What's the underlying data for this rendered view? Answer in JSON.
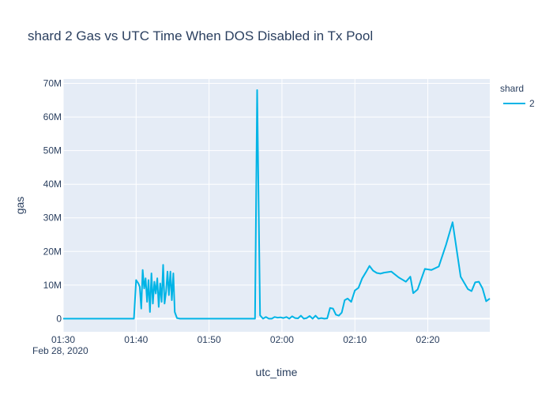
{
  "chart_data": {
    "type": "line",
    "title": "shard 2 Gas vs UTC Time When DOS Disabled in Tx Pool",
    "xlabel": "utc_time",
    "ylabel": "gas",
    "x_date_label": "Feb 28, 2020",
    "x_ticks": [
      "01:30",
      "01:40",
      "01:50",
      "02:00",
      "02:10",
      "02:20"
    ],
    "y_ticks": [
      "0",
      "10M",
      "20M",
      "30M",
      "40M",
      "50M",
      "60M",
      "70M"
    ],
    "y_tick_values": [
      0,
      10000000,
      20000000,
      30000000,
      40000000,
      50000000,
      60000000,
      70000000
    ],
    "x_range": [
      "01:30",
      "02:28.5"
    ],
    "ylim": [
      -3900000,
      71300000
    ],
    "grid": true,
    "legend": {
      "title": "shard",
      "position": "top-right"
    },
    "colors": {
      "series": "#00b4e6",
      "plot_bg": "#e5ecf6",
      "grid": "#ffffff"
    },
    "series": [
      {
        "name": "2",
        "x": [
          "01:30",
          "01:35",
          "01:39.7",
          "01:40",
          "01:40.3",
          "01:40.5",
          "01:40.7",
          "01:40.9",
          "01:41.1",
          "01:41.3",
          "01:41.5",
          "01:41.7",
          "01:41.9",
          "01:42.1",
          "01:42.3",
          "01:42.5",
          "01:42.7",
          "01:42.9",
          "01:43.1",
          "01:43.3",
          "01:43.5",
          "01:43.7",
          "01:43.9",
          "01:44.1",
          "01:44.3",
          "01:44.5",
          "01:44.7",
          "01:44.9",
          "01:45.1",
          "01:45.3",
          "01:45.6",
          "01:46",
          "01:50",
          "01:56.3",
          "01:56.6",
          "01:57",
          "01:57.4",
          "01:57.8",
          "01:58.2",
          "01:58.6",
          "01:59",
          "01:59.4",
          "01:59.8",
          "02:00.2",
          "02:00.6",
          "02:01",
          "02:01.4",
          "02:01.8",
          "02:02.2",
          "02:02.6",
          "02:03",
          "02:03.4",
          "02:03.8",
          "02:04.2",
          "02:04.6",
          "02:05",
          "02:05.4",
          "02:05.8",
          "02:06.2",
          "02:06.6",
          "02:07",
          "02:07.4",
          "02:07.8",
          "02:08.2",
          "02:08.6",
          "02:09",
          "02:09.5",
          "02:10",
          "02:10.5",
          "02:11",
          "02:11.5",
          "02:12",
          "02:12.5",
          "02:13",
          "02:13.5",
          "02:14",
          "02:15",
          "02:16",
          "02:17",
          "02:17.6",
          "02:18",
          "02:18.6",
          "02:19.6",
          "02:20.5",
          "02:21.5",
          "02:22.5",
          "02:23.4",
          "02:24.5",
          "02:25.5",
          "02:26",
          "02:26.5",
          "02:27",
          "02:27.5",
          "02:28",
          "02:28.5"
        ],
        "y": [
          0,
          0,
          0,
          11500000,
          10500000,
          9500000,
          3000000,
          14500000,
          9000000,
          12000000,
          5000000,
          11500000,
          2000000,
          13500000,
          4500000,
          11000000,
          7500000,
          12000000,
          3500000,
          10500000,
          5000000,
          16000000,
          4500000,
          8000000,
          14000000,
          7000000,
          14000000,
          5500000,
          13500000,
          2000000,
          200000,
          0,
          0,
          0,
          68000000,
          1000000,
          0,
          500000,
          0,
          0,
          500000,
          300000,
          400000,
          200000,
          500000,
          0,
          700000,
          200000,
          100000,
          900000,
          0,
          200000,
          800000,
          0,
          900000,
          0,
          200000,
          0,
          100000,
          3200000,
          3000000,
          1200000,
          900000,
          1800000,
          5500000,
          6000000,
          5000000,
          8400000,
          9200000,
          12000000,
          13800000,
          15700000,
          14300000,
          13600000,
          13400000,
          13700000,
          14000000,
          12300000,
          11000000,
          12500000,
          7600000,
          8700000,
          14800000,
          14500000,
          15500000,
          22000000,
          28700000,
          12500000,
          8800000,
          8200000,
          10800000,
          11000000,
          9000000,
          5200000,
          6000000
        ]
      }
    ]
  }
}
